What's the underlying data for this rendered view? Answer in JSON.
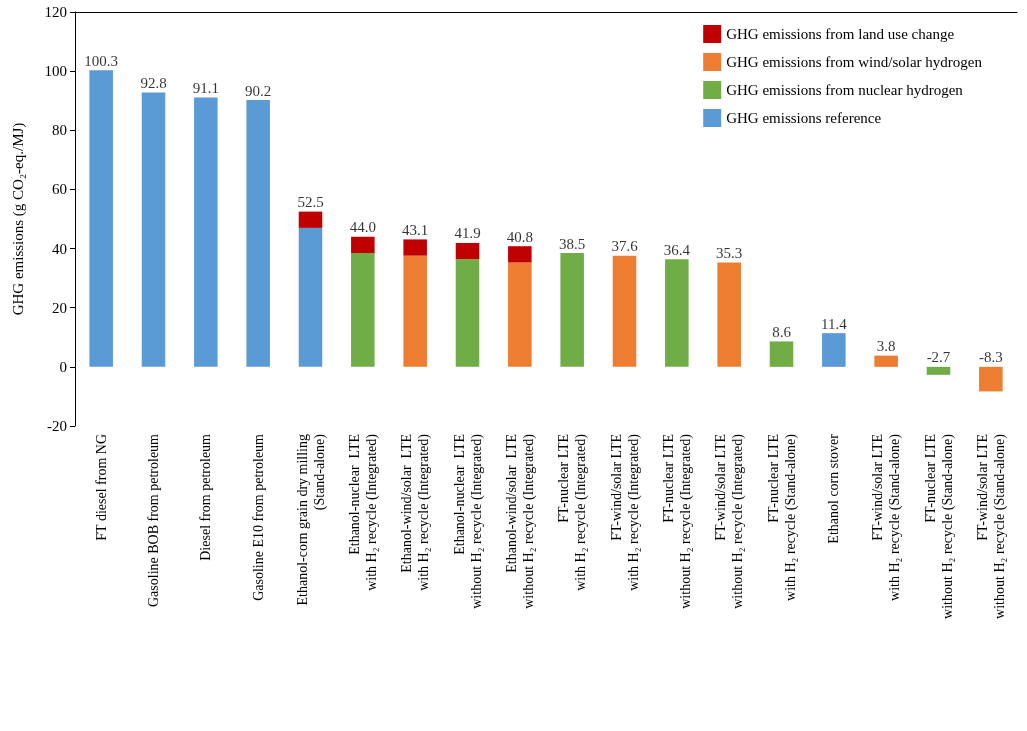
{
  "chart_data": {
    "type": "bar",
    "stacked": true,
    "ylabel": "GHG emissions (g CO₂-eq./MJ)",
    "categories": [
      "FT diesel from NG",
      "Gasoline BOB from petroleum",
      "Diesel from petroleum",
      "Gasoline E10 from petroleum",
      "Ethanol-corn grain dry milling\n(Stand-alone)",
      "Ethanol-nuclear  LTE\nwith H₂ recycle (Integrated)",
      "Ethanol-wind/solar  LTE\nwith H₂ recycle (Integrated)",
      "Ethanol-nuclear  LTE\nwithout H₂ recycle (Integrated)",
      "Ethanol-wind/solar  LTE\nwithout H₂ recycle (Integrated)",
      "FT-nuclear LTE\nwith H₂ recycle (Integrated)",
      "FT-wind/solar LTE\nwith H₂ recycle (Integrated)",
      "FT-nuclear LTE\nwithout H₂ recycle (Integrated)",
      "FT-wind/solar LTE\nwithout H₂ recycle (Integrated)",
      "FT-nuclear LTE\nwith H₂ recycle (Stand-alone)",
      "Ethanol corn stover",
      "FT-wind/solar LTE\nwith H₂ recycle (Stand-alone)",
      "FT-nuclear LTE\nwithout H₂ recycle (Stand-alone)",
      "FT-wind/solar LTE\nwithout H₂ recycle (Stand-alone)"
    ],
    "series": [
      {
        "name": "GHG emissions reference",
        "color": "#5b9bd5",
        "values": [
          100.3,
          92.8,
          91.1,
          90.2,
          47.0,
          null,
          null,
          null,
          null,
          null,
          null,
          null,
          null,
          null,
          11.4,
          null,
          null,
          null
        ]
      },
      {
        "name": "GHG emissions from nuclear hydrogen",
        "color": "#70ad47",
        "values": [
          null,
          null,
          null,
          null,
          null,
          38.5,
          null,
          36.4,
          null,
          38.5,
          null,
          36.4,
          null,
          8.6,
          null,
          null,
          -2.7,
          null
        ]
      },
      {
        "name": "GHG emissions from wind/solar hydrogen",
        "color": "#ed7d31",
        "values": [
          null,
          null,
          null,
          null,
          null,
          null,
          37.6,
          null,
          35.3,
          null,
          37.6,
          null,
          35.3,
          null,
          null,
          3.8,
          null,
          -8.3
        ]
      },
      {
        "name": "GHG emissions from land use change",
        "color": "#c00000",
        "values": [
          null,
          null,
          null,
          null,
          5.5,
          5.5,
          5.5,
          5.5,
          5.5,
          null,
          null,
          null,
          null,
          null,
          null,
          null,
          null,
          null
        ]
      }
    ],
    "totals": [
      "100.3",
      "92.8",
      "91.1",
      "90.2",
      "52.5",
      "44.0",
      "43.1",
      "41.9",
      "40.8",
      "38.5",
      "37.6",
      "36.4",
      "35.3",
      "8.6",
      "11.4",
      "3.8",
      "-2.7",
      "-8.3"
    ],
    "ylim": [
      -20,
      120
    ],
    "yticks": [
      -20,
      0,
      20,
      40,
      60,
      80,
      100,
      120
    ],
    "grid": false,
    "legend": "top right"
  }
}
